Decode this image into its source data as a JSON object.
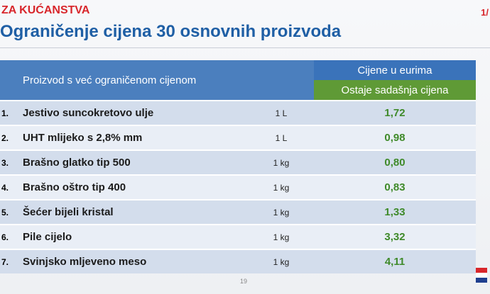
{
  "header": {
    "top_label": "ZA KUĆANSTVA",
    "page": "1/",
    "title": "Ograničenje cijena 30 osnovnih proizvoda"
  },
  "table": {
    "product_header": "Proizvod s već ograničenom cijenom",
    "price_header": "Cijene u eurima",
    "price_subheader": "Ostaje sadašnja cijena",
    "rows": [
      {
        "num": "1.",
        "product": "Jestivo suncokretovo ulje",
        "unit": "1 L",
        "price": "1,72"
      },
      {
        "num": "2.",
        "product": "UHT mlijeko s 2,8% mm",
        "unit": "1 L",
        "price": "0,98"
      },
      {
        "num": "3.",
        "product": "Brašno glatko tip 500",
        "unit": "1 kg",
        "price": "0,80"
      },
      {
        "num": "4.",
        "product": "Brašno oštro tip 400",
        "unit": "1 kg",
        "price": "0,83"
      },
      {
        "num": "5.",
        "product": "Šećer bijeli kristal",
        "unit": "1 kg",
        "price": "1,33"
      },
      {
        "num": "6.",
        "product": "Pile cijelo",
        "unit": "1 kg",
        "price": "3,32"
      },
      {
        "num": "7.",
        "product": "Svinjsko mljeveno meso",
        "unit": "1 kg",
        "price": "4,11"
      }
    ]
  },
  "footer": {
    "slide_number": "19"
  },
  "colors": {
    "title": "#1f5fa5",
    "accent_red": "#d8262b",
    "header_blue": "#3a73ba",
    "header_green": "#5f9a36",
    "price_green": "#3f8a2a"
  }
}
